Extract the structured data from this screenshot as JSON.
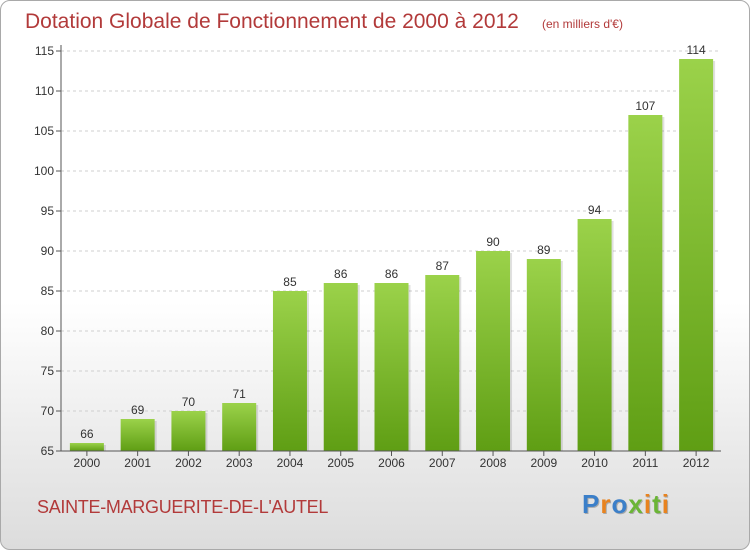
{
  "header": {
    "title": "Dotation Globale de Fonctionnement de 2000 à 2012",
    "unit_note": "(en milliers d'€)"
  },
  "footer": {
    "commune": "SAINTE-MARGUERITE-DE-L'AUTEL",
    "brand": "Proxiti"
  },
  "colors": {
    "title": "#b23a3a",
    "bar_top": "#9bd24a",
    "bar_bottom": "#5f9e14",
    "brand_letters": [
      "#3b7fc9",
      "#e8831f",
      "#3b7fc9",
      "#6bb536",
      "#e8831f",
      "#6bb536",
      "#e8831f"
    ]
  },
  "chart_data": {
    "type": "bar",
    "title": "Dotation Globale de Fonctionnement de 2000 à 2012",
    "subtitle": "(en milliers d'€)",
    "categories": [
      "2000",
      "2001",
      "2002",
      "2003",
      "2004",
      "2005",
      "2006",
      "2007",
      "2008",
      "2009",
      "2010",
      "2011",
      "2012"
    ],
    "values": [
      66,
      69,
      70,
      71,
      85,
      86,
      86,
      87,
      90,
      89,
      94,
      107,
      114
    ],
    "ylim": [
      65,
      115
    ],
    "yticks": [
      65,
      70,
      75,
      80,
      85,
      90,
      95,
      100,
      105,
      110,
      115
    ],
    "grid": true,
    "data_labels": true
  }
}
